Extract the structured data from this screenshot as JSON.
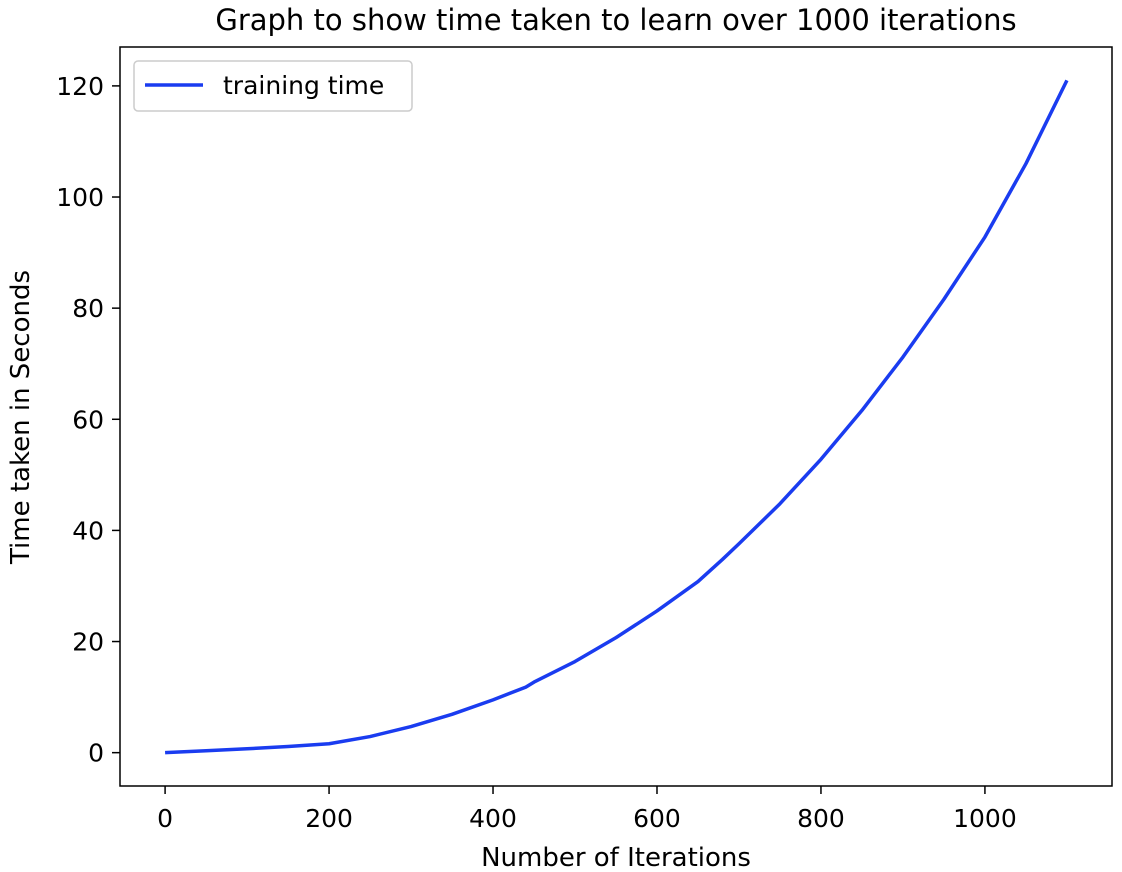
{
  "chart_data": {
    "type": "line",
    "title": "Graph to show time taken to learn over 1000 iterations",
    "xlabel": "Number of Iterations",
    "ylabel": "Time taken in Seconds",
    "xlim": [
      -55,
      1155
    ],
    "ylim": [
      -6,
      127
    ],
    "xticks": [
      0,
      200,
      400,
      600,
      800,
      1000
    ],
    "yticks": [
      0,
      20,
      40,
      60,
      80,
      100,
      120
    ],
    "grid": false,
    "legend_position": "upper left",
    "series": [
      {
        "name": "training time",
        "color": "#1a3cf0",
        "x": [
          0,
          50,
          100,
          150,
          200,
          250,
          300,
          350,
          400,
          440,
          450,
          500,
          550,
          600,
          650,
          665,
          680,
          700,
          750,
          800,
          850,
          900,
          950,
          1000,
          1050,
          1100
        ],
        "y": [
          0.0,
          0.35,
          0.7,
          1.1,
          1.6,
          2.9,
          4.7,
          6.9,
          9.5,
          11.8,
          12.7,
          16.4,
          20.7,
          25.5,
          30.8,
          32.8,
          34.8,
          37.6,
          44.8,
          52.8,
          61.6,
          71.2,
          81.6,
          92.8,
          106.0,
          121.0
        ]
      }
    ]
  }
}
